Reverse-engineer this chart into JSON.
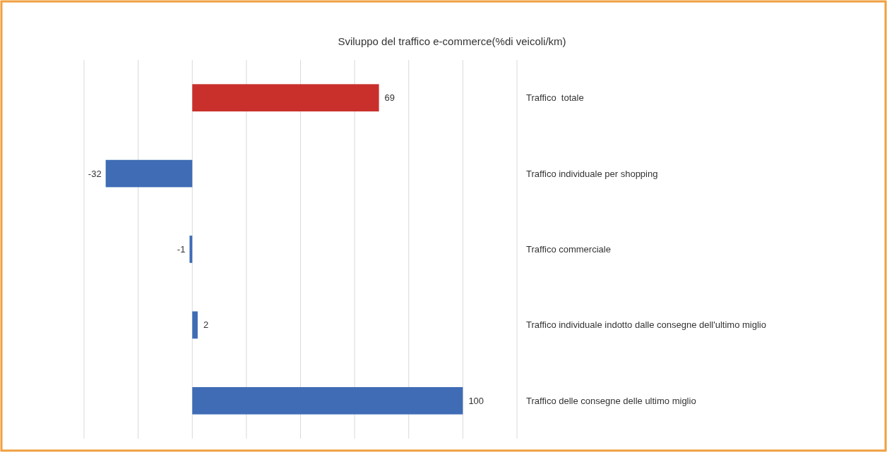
{
  "chart_data": {
    "type": "bar",
    "orientation": "horizontal",
    "title": "Sviluppo del traffico e-commerce(%di veicoli/km)",
    "categories": [
      "Traffico  totale",
      "Traffico individuale per shopping",
      "Traffico commerciale",
      "Traffico individuale indotto dalle consegne dell'ultimo miglio",
      "Traffico delle consegne delle ultimo miglio"
    ],
    "values": [
      69,
      -32,
      -1,
      2,
      100
    ],
    "colors": [
      "#c9302c",
      "#3f6cb5",
      "#3f6cb5",
      "#3f6cb5",
      "#3f6cb5"
    ],
    "xlim": [
      -40,
      120
    ],
    "xticks": [
      {
        "value": -40,
        "label": null
      },
      {
        "value": -20,
        "label": null
      },
      {
        "value": 0,
        "label": null
      },
      {
        "value": 20,
        "label": null
      },
      {
        "value": 40,
        "label": null
      },
      {
        "value": 60,
        "label": null
      },
      {
        "value": 80,
        "label": null
      },
      {
        "value": 100,
        "label": null
      },
      {
        "value": 120,
        "label": null
      }
    ],
    "grid": "x",
    "data_labels": true
  }
}
